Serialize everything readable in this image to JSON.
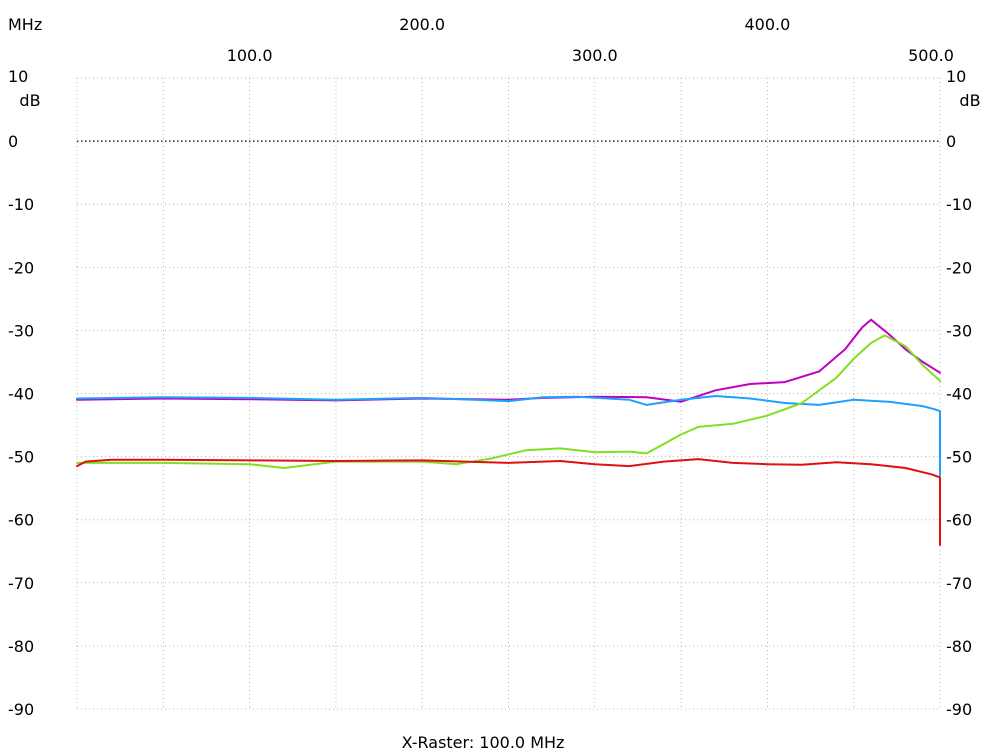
{
  "chart_data": {
    "type": "line",
    "x_unit": "MHz",
    "y_unit": "dB",
    "footer": "X-Raster: 100.0 MHz",
    "xlim": [
      0,
      500
    ],
    "ylim": [
      -90,
      10
    ],
    "grid": true,
    "zero_line": 0,
    "x_ticks_upper": [
      "200.0",
      "400.0"
    ],
    "x_ticks_upper_values": [
      200,
      400
    ],
    "x_ticks_lower": [
      "100.0",
      "300.0",
      "500.0"
    ],
    "x_ticks_lower_values": [
      100,
      300,
      500
    ],
    "y_ticks": [
      "10",
      "0",
      "-10",
      "-20",
      "-30",
      "-40",
      "-50",
      "-60",
      "-70",
      "-80",
      "-90"
    ],
    "y_tick_values": [
      10,
      0,
      -10,
      -20,
      -30,
      -40,
      -50,
      -60,
      -70,
      -80,
      -90
    ],
    "series": [
      {
        "color": "#c000c0",
        "x": [
          0,
          50,
          100,
          150,
          200,
          250,
          270,
          300,
          330,
          350,
          370,
          390,
          410,
          430,
          445,
          455,
          460,
          470,
          480,
          490,
          500
        ],
        "y": [
          -41,
          -40.8,
          -40.9,
          -41.1,
          -40.8,
          -41,
          -40.7,
          -40.5,
          -40.6,
          -41.3,
          -39.5,
          -38.5,
          -38.2,
          -36.5,
          -33,
          -29.5,
          -28.3,
          -30.5,
          -33,
          -35,
          -36.7
        ]
      },
      {
        "color": "#1ea0ff",
        "x": [
          0,
          50,
          100,
          150,
          200,
          230,
          250,
          270,
          290,
          320,
          330,
          350,
          370,
          390,
          410,
          430,
          450,
          470,
          490,
          497,
          500,
          500
        ],
        "y": [
          -40.8,
          -40.6,
          -40.7,
          -41,
          -40.7,
          -41,
          -41.2,
          -40.6,
          -40.5,
          -41,
          -41.8,
          -41,
          -40.4,
          -40.8,
          -41.5,
          -41.8,
          -41,
          -41.3,
          -42,
          -42.5,
          -42.8,
          -53
        ]
      },
      {
        "color": "#80e020",
        "x": [
          0,
          50,
          100,
          120,
          150,
          200,
          220,
          240,
          260,
          280,
          300,
          320,
          330,
          340,
          350,
          360,
          380,
          400,
          420,
          440,
          450,
          460,
          468,
          480,
          490,
          500
        ],
        "y": [
          -51,
          -51,
          -51.2,
          -51.8,
          -50.8,
          -50.8,
          -51.2,
          -50.3,
          -49,
          -48.7,
          -49.3,
          -49.2,
          -49.5,
          -48,
          -46.5,
          -45.3,
          -44.8,
          -43.5,
          -41.5,
          -37.5,
          -34.5,
          -32,
          -30.8,
          -32.5,
          -35.5,
          -38
        ]
      },
      {
        "color": "#e01010",
        "x": [
          0,
          5,
          20,
          50,
          100,
          150,
          200,
          250,
          280,
          300,
          320,
          340,
          360,
          380,
          400,
          420,
          440,
          460,
          480,
          495,
          500,
          500
        ],
        "y": [
          -51.5,
          -50.8,
          -50.5,
          -50.5,
          -50.6,
          -50.7,
          -50.6,
          -51,
          -50.7,
          -51.2,
          -51.5,
          -50.8,
          -50.4,
          -51,
          -51.2,
          -51.3,
          -50.9,
          -51.2,
          -51.8,
          -52.8,
          -53.3,
          -64
        ]
      }
    ]
  }
}
